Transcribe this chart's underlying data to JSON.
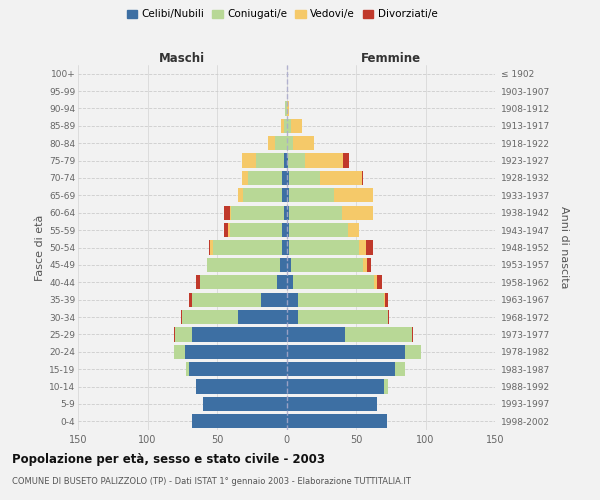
{
  "age_groups": [
    "0-4",
    "5-9",
    "10-14",
    "15-19",
    "20-24",
    "25-29",
    "30-34",
    "35-39",
    "40-44",
    "45-49",
    "50-54",
    "55-59",
    "60-64",
    "65-69",
    "70-74",
    "75-79",
    "80-84",
    "85-89",
    "90-94",
    "95-99",
    "100+"
  ],
  "birth_years": [
    "1998-2002",
    "1993-1997",
    "1988-1992",
    "1983-1987",
    "1978-1982",
    "1973-1977",
    "1968-1972",
    "1963-1967",
    "1958-1962",
    "1953-1957",
    "1948-1952",
    "1943-1947",
    "1938-1942",
    "1933-1937",
    "1928-1932",
    "1923-1927",
    "1918-1922",
    "1913-1917",
    "1908-1912",
    "1903-1907",
    "≤ 1902"
  ],
  "males_celibi": [
    68,
    60,
    65,
    70,
    73,
    68,
    35,
    18,
    7,
    5,
    3,
    3,
    2,
    3,
    3,
    2,
    0,
    0,
    0,
    0,
    0
  ],
  "males_coniugati": [
    0,
    0,
    0,
    2,
    8,
    12,
    40,
    50,
    55,
    52,
    50,
    38,
    38,
    28,
    25,
    20,
    8,
    2,
    1,
    0,
    0
  ],
  "males_vedovi": [
    0,
    0,
    0,
    0,
    0,
    0,
    0,
    0,
    0,
    0,
    2,
    1,
    1,
    4,
    4,
    10,
    5,
    2,
    0,
    0,
    0
  ],
  "males_divorziati": [
    0,
    0,
    0,
    0,
    0,
    1,
    1,
    2,
    3,
    0,
    1,
    3,
    4,
    0,
    0,
    0,
    0,
    0,
    0,
    0,
    0
  ],
  "females_nubili": [
    72,
    65,
    70,
    78,
    85,
    42,
    8,
    8,
    5,
    3,
    2,
    2,
    2,
    2,
    2,
    1,
    0,
    0,
    0,
    0,
    0
  ],
  "females_coniugate": [
    0,
    0,
    3,
    7,
    12,
    48,
    65,
    62,
    58,
    52,
    50,
    42,
    38,
    32,
    22,
    12,
    5,
    3,
    0,
    0,
    0
  ],
  "females_vedove": [
    0,
    0,
    0,
    0,
    0,
    0,
    0,
    1,
    2,
    3,
    5,
    8,
    22,
    28,
    30,
    28,
    15,
    8,
    2,
    0,
    0
  ],
  "females_divorziate": [
    0,
    0,
    0,
    0,
    0,
    1,
    1,
    2,
    4,
    3,
    5,
    0,
    0,
    0,
    1,
    4,
    0,
    0,
    0,
    0,
    0
  ],
  "colors_celibi": "#3d6fa3",
  "colors_coniugati": "#b8d896",
  "colors_vedovi": "#f5c969",
  "colors_divorziati": "#c0392b",
  "xlim": 150,
  "bg_color": "#f2f2f2",
  "title": "Popolazione per età, sesso e stato civile - 2003",
  "subtitle": "COMUNE DI BUSETO PALIZZOLO (TP) - Dati ISTAT 1° gennaio 2003 - Elaborazione TUTTITALIA.IT",
  "ylabel_left": "Fasce di età",
  "ylabel_right": "Anni di nascita",
  "header_left": "Maschi",
  "header_right": "Femmine"
}
